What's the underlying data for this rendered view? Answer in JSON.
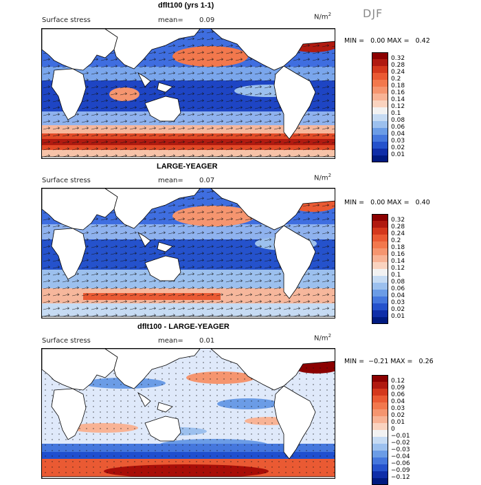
{
  "season": "DJF",
  "panels": [
    {
      "id": "p1",
      "title": "dflt100 (yrs 1-1)",
      "left_label": "Surface stress",
      "mean_label": "mean=",
      "mean_value": "0.09",
      "unit": "N/m",
      "unit_exp": "2",
      "min_label": "MIN =",
      "min_value": "0.00",
      "max_label": "MAX =",
      "max_value": "0.42",
      "legend_levels": [
        "0.32",
        "0.28",
        "0.24",
        "0.2",
        "0.18",
        "0.16",
        "0.14",
        "0.12",
        "0.1",
        "0.08",
        "0.06",
        "0.04",
        "0.03",
        "0.02",
        "0.01"
      ],
      "legend_colors": [
        "#8b0000",
        "#b01a10",
        "#d4381c",
        "#ea5a33",
        "#f2784d",
        "#f5956f",
        "#f8b395",
        "#fad3bf",
        "#f2f2f2",
        "#c6dbf3",
        "#9cc0ee",
        "#6b9ce6",
        "#4577dd",
        "#2552cc",
        "#0f2ea8",
        "#001a80"
      ]
    },
    {
      "id": "p2",
      "title": "LARGE-YEAGER",
      "left_label": "Surface stress",
      "mean_label": "mean=",
      "mean_value": "0.07",
      "unit": "N/m",
      "unit_exp": "2",
      "min_label": "MIN =",
      "min_value": "0.00",
      "max_label": "MAX =",
      "max_value": "0.40",
      "legend_levels": [
        "0.32",
        "0.28",
        "0.24",
        "0.2",
        "0.18",
        "0.16",
        "0.14",
        "0.12",
        "0.1",
        "0.08",
        "0.06",
        "0.04",
        "0.03",
        "0.02",
        "0.01"
      ],
      "legend_colors": [
        "#8b0000",
        "#b01a10",
        "#d4381c",
        "#ea5a33",
        "#f2784d",
        "#f5956f",
        "#f8b395",
        "#fad3bf",
        "#f2f2f2",
        "#c6dbf3",
        "#9cc0ee",
        "#6b9ce6",
        "#4577dd",
        "#2552cc",
        "#0f2ea8",
        "#001a80"
      ]
    },
    {
      "id": "p3",
      "title": "dflt100 - LARGE-YEAGER",
      "left_label": "Surface stress",
      "mean_label": "mean=",
      "mean_value": "0.01",
      "unit": "N/m",
      "unit_exp": "2",
      "min_label": "MIN =",
      "min_value": "−0.21",
      "max_label": "MAX =",
      "max_value": "0.26",
      "legend_levels": [
        "0.12",
        "0.09",
        "0.06",
        "0.04",
        "0.03",
        "0.02",
        "0.01",
        "0",
        "−0.01",
        "−0.02",
        "−0.03",
        "−0.04",
        "−0.06",
        "−0.09",
        "−0.12"
      ],
      "legend_colors": [
        "#8b0000",
        "#b01a10",
        "#d4381c",
        "#ea5a33",
        "#f2784d",
        "#f5956f",
        "#f8b395",
        "#fad3bf",
        "#f2f2f2",
        "#c6dbf3",
        "#9cc0ee",
        "#6b9ce6",
        "#4577dd",
        "#2552cc",
        "#0f2ea8",
        "#001a80"
      ]
    }
  ],
  "palette": {
    "ocean_low": "#1f4fcf",
    "ocean_mid": "#6e9ce8",
    "ocean_pale": "#dfe9fa",
    "warm_low": "#f6b79c",
    "warm_mid": "#ea5a33",
    "warm_high": "#a80e08",
    "land": "#ffffff",
    "coast": "#000000"
  }
}
